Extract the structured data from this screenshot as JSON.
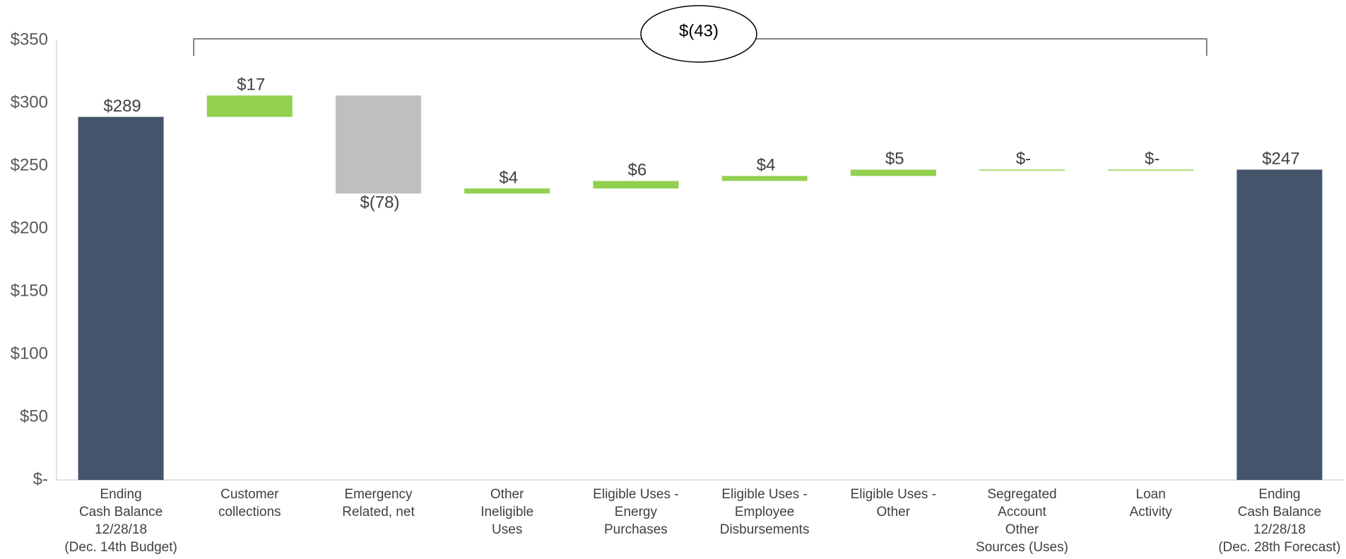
{
  "chart_data": {
    "type": "bar",
    "subtype": "waterfall",
    "title": "",
    "xlabel": "",
    "ylabel": "",
    "ylim": [
      0,
      350
    ],
    "yticks": [
      {
        "value": 0,
        "label": "$-"
      },
      {
        "value": 50,
        "label": "$50"
      },
      {
        "value": 100,
        "label": "$100"
      },
      {
        "value": 150,
        "label": "$150"
      },
      {
        "value": 200,
        "label": "$200"
      },
      {
        "value": 250,
        "label": "$250"
      },
      {
        "value": 300,
        "label": "$300"
      },
      {
        "value": 350,
        "label": "$350"
      }
    ],
    "grid": false,
    "legend": "none",
    "colors": {
      "total": "#44546a",
      "increase": "#92d050",
      "decrease": "#bfbfbf",
      "axis": "#d9d9d9"
    },
    "categories": [
      [
        "Ending",
        "Cash Balance",
        "12/28/18",
        "(Dec. 14th Budget)"
      ],
      [
        "Customer",
        "collections"
      ],
      [
        "Emergency",
        "Related, net"
      ],
      [
        "Other",
        "Ineligible",
        "Uses"
      ],
      [
        "Eligible Uses -",
        "Energy",
        "Purchases"
      ],
      [
        "Eligible Uses -",
        "Employee",
        "Disbursements"
      ],
      [
        "Eligible Uses -",
        "Other"
      ],
      [
        "Segregated",
        "Account",
        "Other",
        "Sources (Uses)"
      ],
      [
        "Loan",
        "Activity"
      ],
      [
        "Ending",
        "Cash Balance",
        "12/28/18",
        "(Dec. 28th Forecast)"
      ]
    ],
    "bars": [
      {
        "kind": "total",
        "start": 0,
        "end": 289,
        "label": "$289"
      },
      {
        "kind": "increase",
        "start": 289,
        "end": 306,
        "label": "$17"
      },
      {
        "kind": "decrease",
        "start": 306,
        "end": 228,
        "label": "$(78)"
      },
      {
        "kind": "increase",
        "start": 228,
        "end": 232,
        "label": "$4"
      },
      {
        "kind": "increase",
        "start": 232,
        "end": 238,
        "label": "$6"
      },
      {
        "kind": "increase",
        "start": 238,
        "end": 242,
        "label": "$4"
      },
      {
        "kind": "increase",
        "start": 242,
        "end": 247,
        "label": "$5"
      },
      {
        "kind": "increase",
        "start": 247,
        "end": 247,
        "label": "$-"
      },
      {
        "kind": "increase",
        "start": 247,
        "end": 247,
        "label": "$-"
      },
      {
        "kind": "total",
        "start": 0,
        "end": 247,
        "label": "$247"
      }
    ],
    "annotation": {
      "label": "$(43)",
      "from_category": 1,
      "to_category": 8
    }
  }
}
